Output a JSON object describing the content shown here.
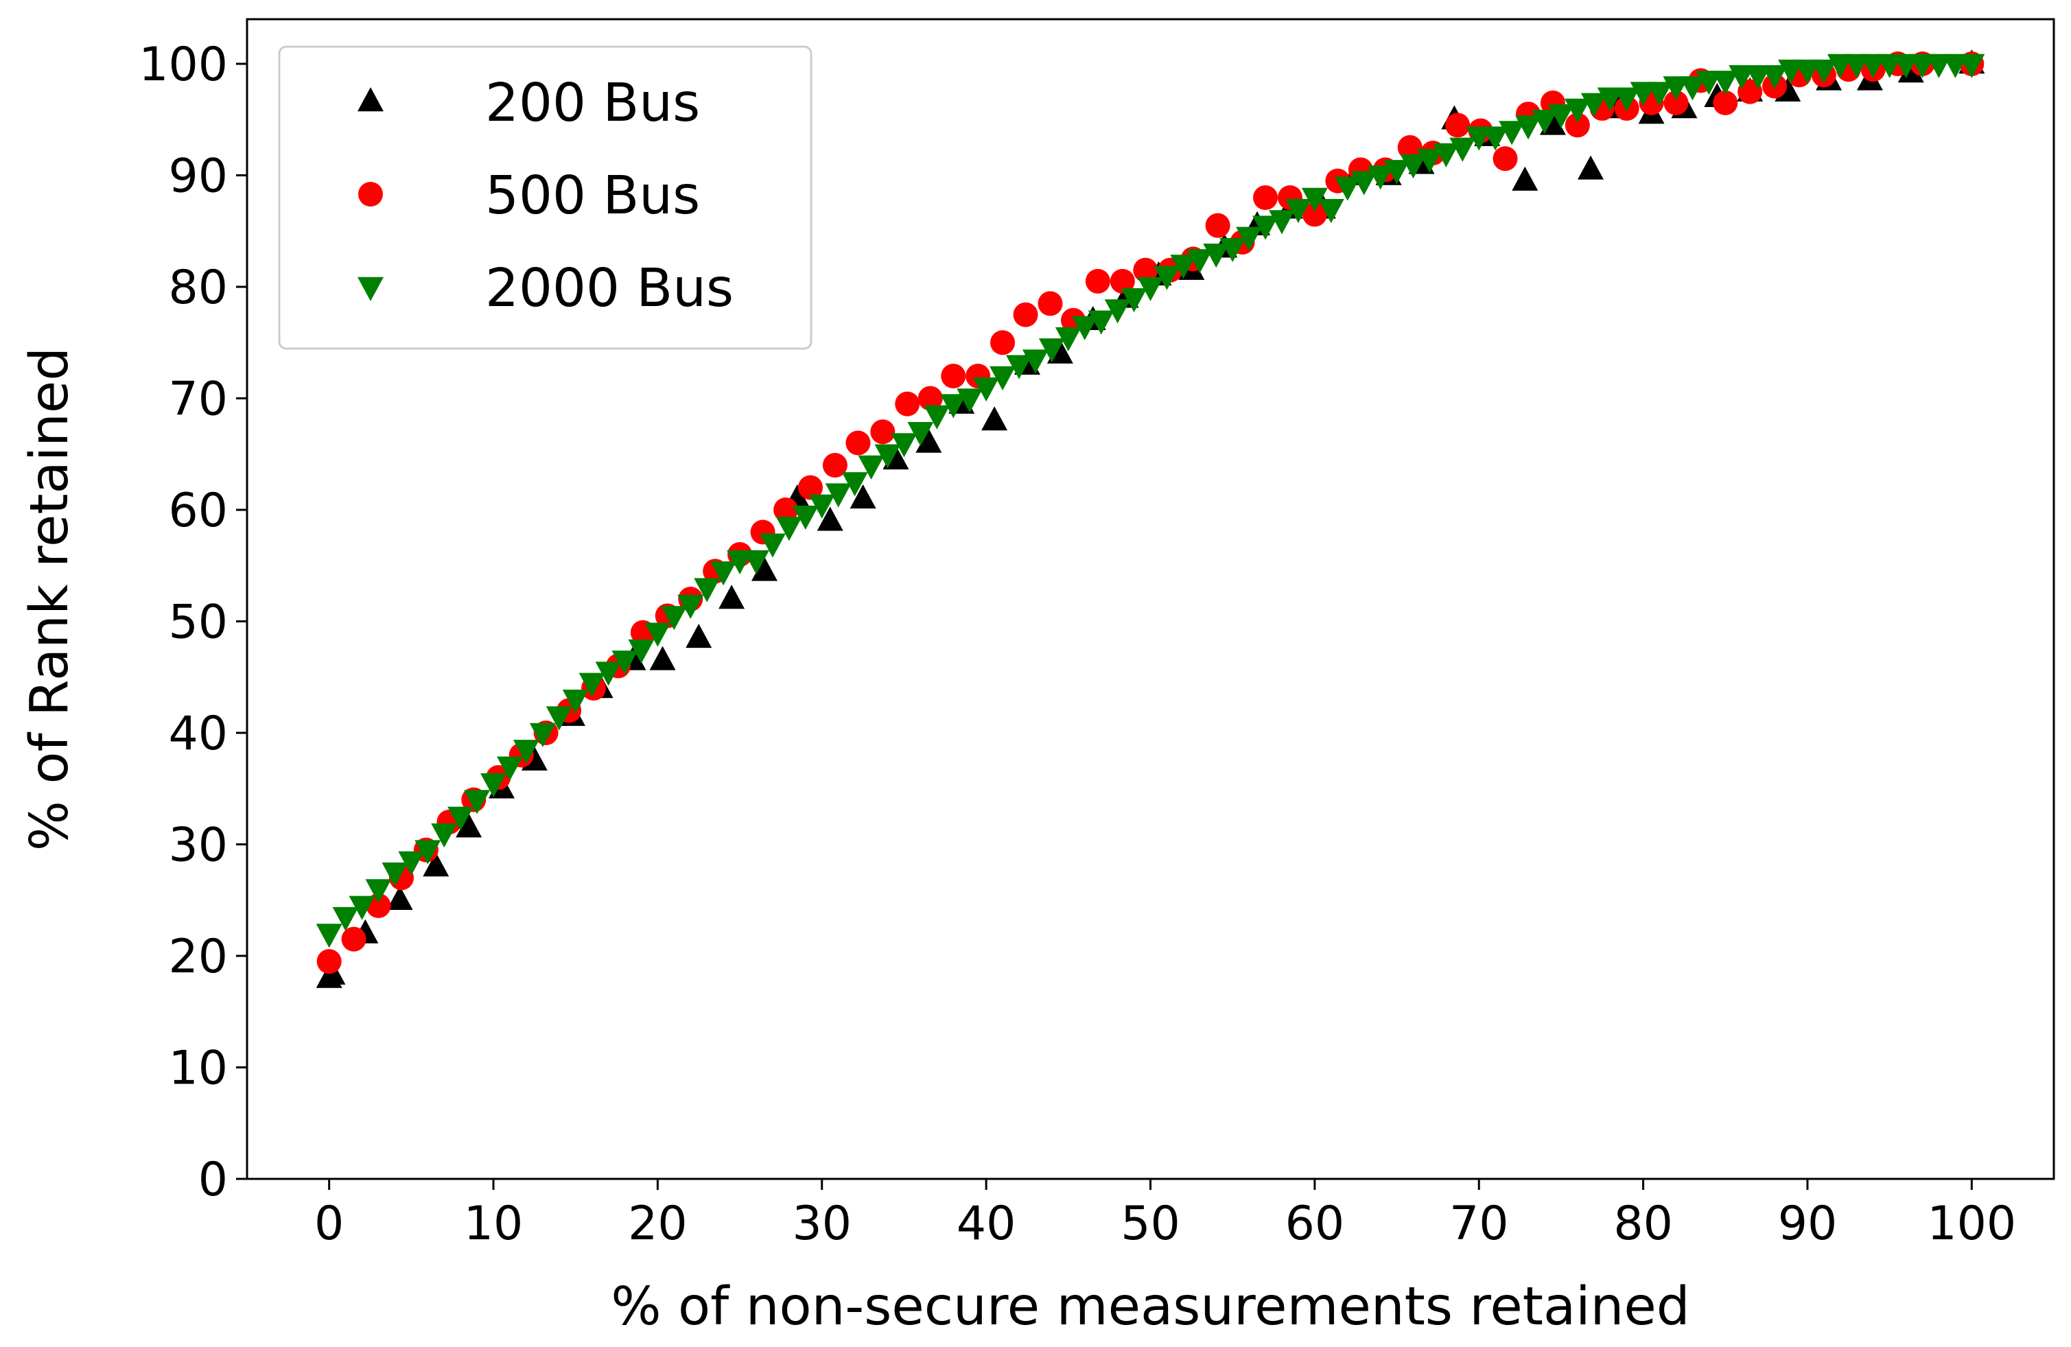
{
  "chart_data": {
    "type": "scatter",
    "title": "",
    "xlabel": "% of non-secure measurements retained",
    "ylabel": "% of Rank retained",
    "xlim": [
      -5,
      105
    ],
    "ylim": [
      0,
      104
    ],
    "xticks": [
      0,
      10,
      20,
      30,
      40,
      50,
      60,
      70,
      80,
      90,
      100
    ],
    "yticks": [
      0,
      10,
      20,
      30,
      40,
      50,
      60,
      70,
      80,
      90,
      100
    ],
    "grid": false,
    "legend_position": "top-left",
    "series": [
      {
        "name": "200 Bus",
        "marker": "triangle-up",
        "color": "#000000",
        "points": [
          [
            0,
            18
          ],
          [
            0.2,
            18.3
          ],
          [
            2.2,
            22
          ],
          [
            4.3,
            25
          ],
          [
            6.5,
            28
          ],
          [
            8.5,
            31.5
          ],
          [
            10.5,
            35
          ],
          [
            12.5,
            37.5
          ],
          [
            14.8,
            41.5
          ],
          [
            16.5,
            44
          ],
          [
            18.5,
            46.5
          ],
          [
            20.3,
            46.5
          ],
          [
            22.5,
            48.5
          ],
          [
            24.5,
            52
          ],
          [
            26.5,
            54.5
          ],
          [
            28.5,
            61
          ],
          [
            30.5,
            59
          ],
          [
            32.5,
            61
          ],
          [
            34.5,
            64.5
          ],
          [
            36.5,
            66
          ],
          [
            38.5,
            69.5
          ],
          [
            40.5,
            68
          ],
          [
            42.5,
            73
          ],
          [
            44.5,
            74
          ],
          [
            46.5,
            77
          ],
          [
            48.5,
            79
          ],
          [
            50.5,
            81
          ],
          [
            52.5,
            81.5
          ],
          [
            54.5,
            83.5
          ],
          [
            56.5,
            85.5
          ],
          [
            58.5,
            87
          ],
          [
            60.5,
            87
          ],
          [
            62.5,
            90
          ],
          [
            64.5,
            90
          ],
          [
            66.5,
            91
          ],
          [
            68.5,
            95
          ],
          [
            70.5,
            93.5
          ],
          [
            72.8,
            89.5
          ],
          [
            74.5,
            94.5
          ],
          [
            76.8,
            90.5
          ],
          [
            78.5,
            96
          ],
          [
            80.5,
            95.5
          ],
          [
            82.5,
            96
          ],
          [
            84.5,
            97
          ],
          [
            86.5,
            97.5
          ],
          [
            88.8,
            97.5
          ],
          [
            91.3,
            98.5
          ],
          [
            93.8,
            98.5
          ],
          [
            96.3,
            99.2
          ],
          [
            100,
            100
          ]
        ]
      },
      {
        "name": "500 Bus",
        "marker": "circle",
        "color": "#ff0000",
        "points": [
          [
            0,
            19.5
          ],
          [
            1.5,
            21.5
          ],
          [
            3,
            24.5
          ],
          [
            4.4,
            27
          ],
          [
            5.9,
            29.5
          ],
          [
            7.3,
            32
          ],
          [
            8.8,
            34
          ],
          [
            10.3,
            36
          ],
          [
            11.7,
            38
          ],
          [
            13.2,
            40
          ],
          [
            14.6,
            42
          ],
          [
            16.1,
            44
          ],
          [
            17.6,
            46
          ],
          [
            19.1,
            49
          ],
          [
            20.6,
            50.5
          ],
          [
            22,
            52
          ],
          [
            23.5,
            54.5
          ],
          [
            25,
            56
          ],
          [
            26.4,
            58
          ],
          [
            27.8,
            60
          ],
          [
            29.3,
            62
          ],
          [
            30.8,
            64
          ],
          [
            32.2,
            66
          ],
          [
            33.7,
            67
          ],
          [
            35.2,
            69.5
          ],
          [
            36.6,
            70
          ],
          [
            38,
            72
          ],
          [
            39.5,
            72
          ],
          [
            41,
            75
          ],
          [
            42.4,
            77.5
          ],
          [
            43.9,
            78.5
          ],
          [
            45.3,
            77
          ],
          [
            46.8,
            80.5
          ],
          [
            48.3,
            80.5
          ],
          [
            49.7,
            81.5
          ],
          [
            51.2,
            81.5
          ],
          [
            52.6,
            82.5
          ],
          [
            54.1,
            85.5
          ],
          [
            55.6,
            84
          ],
          [
            57,
            88
          ],
          [
            58.5,
            88
          ],
          [
            60,
            86.5
          ],
          [
            61.4,
            89.5
          ],
          [
            62.8,
            90.5
          ],
          [
            64.3,
            90.5
          ],
          [
            65.8,
            92.5
          ],
          [
            67.2,
            92
          ],
          [
            68.7,
            94.5
          ],
          [
            70.1,
            94
          ],
          [
            71.6,
            91.5
          ],
          [
            73,
            95.5
          ],
          [
            74.5,
            96.5
          ],
          [
            76,
            94.5
          ],
          [
            77.5,
            96
          ],
          [
            79,
            96
          ],
          [
            80.5,
            96.5
          ],
          [
            82,
            96.5
          ],
          [
            83.5,
            98.5
          ],
          [
            85,
            96.5
          ],
          [
            86.5,
            97.5
          ],
          [
            88,
            98
          ],
          [
            89.5,
            99
          ],
          [
            91,
            99
          ],
          [
            92.5,
            99.5
          ],
          [
            94,
            99.5
          ],
          [
            95.5,
            100
          ],
          [
            97,
            100
          ],
          [
            100,
            100
          ]
        ]
      },
      {
        "name": "2000 Bus",
        "marker": "triangle-down",
        "color": "#008000",
        "points": [
          [
            0,
            22
          ],
          [
            1,
            23.5
          ],
          [
            2,
            24.5
          ],
          [
            3,
            26
          ],
          [
            4,
            27.5
          ],
          [
            5,
            28.5
          ],
          [
            6,
            29.5
          ],
          [
            7,
            31
          ],
          [
            8,
            32.5
          ],
          [
            9,
            34
          ],
          [
            10,
            35.5
          ],
          [
            11,
            37
          ],
          [
            12,
            38.5
          ],
          [
            13,
            40
          ],
          [
            14,
            41.5
          ],
          [
            15,
            43
          ],
          [
            16,
            44.5
          ],
          [
            17,
            45.5
          ],
          [
            18,
            46.5
          ],
          [
            19,
            47.5
          ],
          [
            20,
            49
          ],
          [
            21,
            50.5
          ],
          [
            22,
            51.5
          ],
          [
            23,
            53
          ],
          [
            24,
            54.5
          ],
          [
            25,
            55.5
          ],
          [
            26,
            55.5
          ],
          [
            27,
            57
          ],
          [
            28,
            58.5
          ],
          [
            29,
            59.5
          ],
          [
            30,
            60.5
          ],
          [
            31,
            61.5
          ],
          [
            32,
            62.5
          ],
          [
            33,
            64
          ],
          [
            34,
            65
          ],
          [
            35,
            66
          ],
          [
            36,
            67
          ],
          [
            37,
            68.5
          ],
          [
            38,
            69.5
          ],
          [
            39,
            70
          ],
          [
            40,
            71
          ],
          [
            41,
            72
          ],
          [
            42,
            73
          ],
          [
            43,
            73.5
          ],
          [
            44,
            74.5
          ],
          [
            45,
            75.5
          ],
          [
            46,
            76.5
          ],
          [
            47,
            77
          ],
          [
            48,
            78
          ],
          [
            49,
            79
          ],
          [
            50,
            80
          ],
          [
            51,
            81
          ],
          [
            52,
            82
          ],
          [
            53,
            82.5
          ],
          [
            54,
            83
          ],
          [
            55,
            83.5
          ],
          [
            56,
            84.5
          ],
          [
            57,
            85.5
          ],
          [
            58,
            86
          ],
          [
            59,
            87
          ],
          [
            60,
            88
          ],
          [
            61,
            87
          ],
          [
            62,
            89
          ],
          [
            63,
            89.5
          ],
          [
            64,
            90
          ],
          [
            65,
            90.5
          ],
          [
            66,
            91
          ],
          [
            67,
            91.5
          ],
          [
            68,
            92
          ],
          [
            69,
            92.5
          ],
          [
            70,
            93.5
          ],
          [
            71,
            93.5
          ],
          [
            72,
            94
          ],
          [
            73,
            94.5
          ],
          [
            74,
            95
          ],
          [
            75,
            95.5
          ],
          [
            76,
            96
          ],
          [
            77,
            96.5
          ],
          [
            78,
            97
          ],
          [
            79,
            97
          ],
          [
            80,
            97.5
          ],
          [
            81,
            97.5
          ],
          [
            82,
            98
          ],
          [
            83,
            98
          ],
          [
            84,
            98.5
          ],
          [
            85,
            98.5
          ],
          [
            86,
            99
          ],
          [
            87,
            99
          ],
          [
            88,
            99
          ],
          [
            89,
            99.5
          ],
          [
            90,
            99.5
          ],
          [
            91,
            99.5
          ],
          [
            92,
            100
          ],
          [
            93,
            100
          ],
          [
            94,
            100
          ],
          [
            95,
            100
          ],
          [
            96,
            100
          ],
          [
            97,
            100
          ],
          [
            98,
            100
          ],
          [
            99,
            100
          ],
          [
            100,
            100
          ]
        ]
      }
    ]
  }
}
